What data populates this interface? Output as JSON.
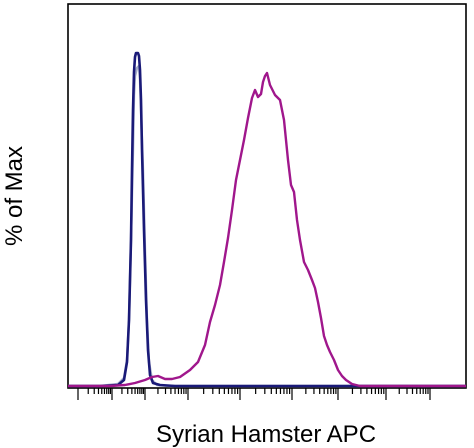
{
  "chart_data": {
    "type": "line",
    "xlabel": "Syrian Hamster APC",
    "ylabel": "% of Max",
    "x_scale": "log",
    "grid": false,
    "legend": "none",
    "series": [
      {
        "color": "#a3aac8",
        "points": [
          [
            68,
            386
          ],
          [
            100,
            386
          ],
          [
            118,
            384
          ],
          [
            124,
            378
          ],
          [
            127,
            360
          ],
          [
            129,
            320
          ],
          [
            131,
            240
          ],
          [
            133,
            150
          ],
          [
            134,
            95
          ],
          [
            135,
            76
          ],
          [
            137,
            68
          ],
          [
            139,
            66
          ],
          [
            140,
            80
          ],
          [
            141,
            110
          ],
          [
            143,
            170
          ],
          [
            145,
            250
          ],
          [
            147,
            320
          ],
          [
            149,
            362
          ],
          [
            152,
            380
          ],
          [
            157,
            385
          ],
          [
            170,
            386
          ],
          [
            466,
            386
          ]
        ]
      },
      {
        "color": "#1a1a78",
        "points": [
          [
            68,
            386
          ],
          [
            100,
            386
          ],
          [
            118,
            385
          ],
          [
            124,
            380
          ],
          [
            127,
            362
          ],
          [
            129,
            320
          ],
          [
            131,
            240
          ],
          [
            132,
            170
          ],
          [
            133,
            110
          ],
          [
            134,
            72
          ],
          [
            135,
            57
          ],
          [
            136,
            53
          ],
          [
            138,
            53
          ],
          [
            139,
            56
          ],
          [
            140,
            70
          ],
          [
            141,
            100
          ],
          [
            142,
            150
          ],
          [
            144,
            230
          ],
          [
            146,
            300
          ],
          [
            148,
            350
          ],
          [
            150,
            375
          ],
          [
            153,
            383
          ],
          [
            160,
            385
          ],
          [
            175,
            386
          ],
          [
            466,
            386
          ]
        ]
      },
      {
        "color": "#a0178c",
        "points": [
          [
            68,
            386
          ],
          [
            110,
            386
          ],
          [
            125,
            385
          ],
          [
            135,
            383
          ],
          [
            145,
            380
          ],
          [
            152,
            377
          ],
          [
            158,
            376
          ],
          [
            165,
            379
          ],
          [
            172,
            379
          ],
          [
            180,
            377
          ],
          [
            190,
            370
          ],
          [
            198,
            362
          ],
          [
            205,
            345
          ],
          [
            210,
            322
          ],
          [
            215,
            305
          ],
          [
            220,
            285
          ],
          [
            224,
            262
          ],
          [
            228,
            238
          ],
          [
            232,
            210
          ],
          [
            236,
            180
          ],
          [
            240,
            160
          ],
          [
            244,
            140
          ],
          [
            248,
            118
          ],
          [
            252,
            98
          ],
          [
            255,
            90
          ],
          [
            258,
            97
          ],
          [
            261,
            94
          ],
          [
            263,
            82
          ],
          [
            265,
            76
          ],
          [
            267,
            73
          ],
          [
            270,
            85
          ],
          [
            275,
            95
          ],
          [
            280,
            100
          ],
          [
            284,
            120
          ],
          [
            288,
            160
          ],
          [
            291,
            185
          ],
          [
            294,
            192
          ],
          [
            297,
            220
          ],
          [
            300,
            240
          ],
          [
            304,
            262
          ],
          [
            308,
            270
          ],
          [
            312,
            280
          ],
          [
            315,
            288
          ],
          [
            318,
            302
          ],
          [
            321,
            318
          ],
          [
            324,
            336
          ],
          [
            327,
            345
          ],
          [
            330,
            352
          ],
          [
            334,
            360
          ],
          [
            338,
            370
          ],
          [
            342,
            376
          ],
          [
            346,
            380
          ],
          [
            352,
            384
          ],
          [
            360,
            386
          ],
          [
            466,
            386
          ]
        ]
      }
    ]
  }
}
